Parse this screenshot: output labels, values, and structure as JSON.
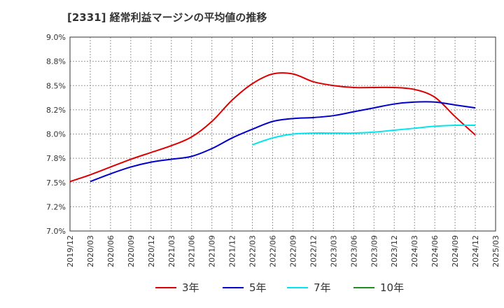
{
  "chart_data": {
    "type": "line",
    "title": "[2331]  経常利益マージンの平均値の推移",
    "x_ticks": [
      "2019/12",
      "2020/03",
      "2020/06",
      "2020/09",
      "2020/12",
      "2021/03",
      "2021/06",
      "2021/09",
      "2021/12",
      "2022/03",
      "2022/06",
      "2022/09",
      "2022/12",
      "2023/03",
      "2023/06",
      "2023/09",
      "2023/12",
      "2024/03",
      "2024/06",
      "2024/09",
      "2024/12",
      "2025/03"
    ],
    "y_ticks": [
      "7.0%",
      "7.2%",
      "7.5%",
      "7.8%",
      "8.0%",
      "8.2%",
      "8.5%",
      "8.8%",
      "9.0%"
    ],
    "ylim": [
      7.0,
      9.0
    ],
    "grid": true,
    "legend_position": "bottom",
    "series": [
      {
        "name": "3年",
        "color": "#dd0000",
        "points": [
          [
            "2019/12",
            7.51
          ],
          [
            "2020/03",
            7.58
          ],
          [
            "2020/06",
            7.66
          ],
          [
            "2020/09",
            7.74
          ],
          [
            "2020/12",
            7.81
          ],
          [
            "2021/03",
            7.88
          ],
          [
            "2021/06",
            7.97
          ],
          [
            "2021/09",
            8.13
          ],
          [
            "2021/12",
            8.35
          ],
          [
            "2022/03",
            8.52
          ],
          [
            "2022/06",
            8.62
          ],
          [
            "2022/09",
            8.62
          ],
          [
            "2022/12",
            8.54
          ],
          [
            "2023/03",
            8.5
          ],
          [
            "2023/06",
            8.48
          ],
          [
            "2023/09",
            8.48
          ],
          [
            "2023/12",
            8.48
          ],
          [
            "2024/03",
            8.46
          ],
          [
            "2024/06",
            8.38
          ],
          [
            "2024/09",
            8.18
          ],
          [
            "2024/12",
            7.99
          ]
        ]
      },
      {
        "name": "5年",
        "color": "#0000cc",
        "points": [
          [
            "2020/03",
            7.51
          ],
          [
            "2020/06",
            7.59
          ],
          [
            "2020/09",
            7.66
          ],
          [
            "2020/12",
            7.71
          ],
          [
            "2021/03",
            7.74
          ],
          [
            "2021/06",
            7.77
          ],
          [
            "2021/09",
            7.85
          ],
          [
            "2021/12",
            7.96
          ],
          [
            "2022/03",
            8.05
          ],
          [
            "2022/06",
            8.13
          ],
          [
            "2022/09",
            8.16
          ],
          [
            "2022/12",
            8.17
          ],
          [
            "2023/03",
            8.19
          ],
          [
            "2023/06",
            8.23
          ],
          [
            "2023/09",
            8.27
          ],
          [
            "2023/12",
            8.31
          ],
          [
            "2024/03",
            8.33
          ],
          [
            "2024/06",
            8.33
          ],
          [
            "2024/09",
            8.3
          ],
          [
            "2024/12",
            8.27
          ]
        ]
      },
      {
        "name": "7年",
        "color": "#00e5ee",
        "points": [
          [
            "2022/03",
            7.89
          ],
          [
            "2022/06",
            7.96
          ],
          [
            "2022/09",
            8.0
          ],
          [
            "2022/12",
            8.01
          ],
          [
            "2023/03",
            8.01
          ],
          [
            "2023/06",
            8.01
          ],
          [
            "2023/09",
            8.02
          ],
          [
            "2023/12",
            8.04
          ],
          [
            "2024/03",
            8.06
          ],
          [
            "2024/06",
            8.08
          ],
          [
            "2024/09",
            8.09
          ],
          [
            "2024/12",
            8.09
          ]
        ]
      },
      {
        "name": "10年",
        "color": "#228b22",
        "points": []
      }
    ]
  }
}
